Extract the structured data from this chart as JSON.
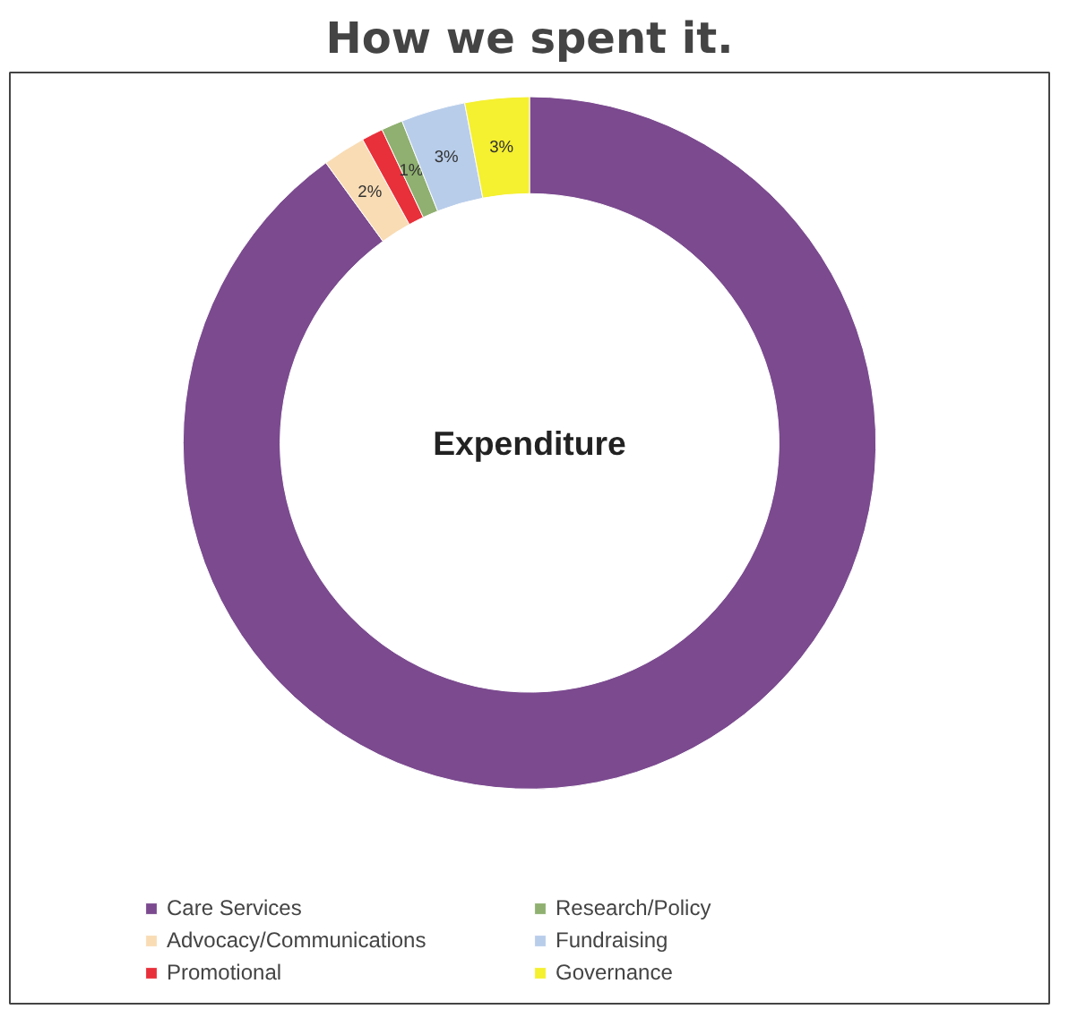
{
  "chart_data": {
    "type": "donut",
    "title": "How we spent it.",
    "categories": [
      "Care Services",
      "Advocacy/Communications",
      "Promotional",
      "Research/Policy",
      "Fundraising",
      "Governance"
    ],
    "values": [
      90,
      2,
      1,
      1,
      3,
      3
    ],
    "value_labels": [
      null,
      "2%",
      null,
      "1%",
      "3%",
      "3%"
    ],
    "colors": [
      "#7b4a8f",
      "#f9dcb4",
      "#e8303a",
      "#8fb070",
      "#b8cdea",
      "#f5f030"
    ],
    "annotations": [
      "Expenditure"
    ],
    "legend": "bottom"
  }
}
